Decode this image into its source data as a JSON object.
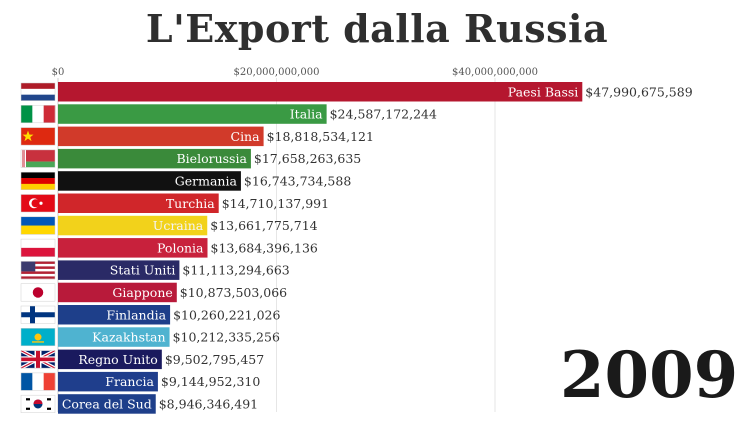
{
  "title": "L'Export dalla Russia",
  "year": "2009",
  "chart_data": {
    "type": "bar",
    "orientation": "horizontal",
    "title": "L'Export dalla Russia",
    "xlim": [
      0,
      50000000000
    ],
    "x_ticks": [
      0,
      20000000000,
      40000000000
    ],
    "x_tick_labels": [
      "$0",
      "$20,000,000,000",
      "$40,000,000,000"
    ],
    "grid": true,
    "categories": [
      "Paesi Bassi",
      "Italia",
      "Cina",
      "Bielorussia",
      "Germania",
      "Turchia",
      "Ucraina",
      "Polonia",
      "Stati Uniti",
      "Giappone",
      "Finlandia",
      "Kazakhstan",
      "Regno Unito",
      "Francia",
      "Corea del Sud"
    ],
    "values": [
      47990675589,
      24587172244,
      18818534121,
      17658263635,
      16743734588,
      14710137991,
      13661775714,
      13684396136,
      11113294663,
      10873503066,
      10260221026,
      10212335256,
      9502795457,
      9144952310,
      8946346491
    ],
    "value_labels": [
      "$47,990,675,589",
      "$24,587,172,244",
      "$18,818,534,121",
      "$17,658,263,635",
      "$16,743,734,588",
      "$14,710,137,991",
      "$13,661,775,714",
      "$13,684,396,136",
      "$11,113,294,663",
      "$10,873,503,066",
      "$10,260,221,026",
      "$10,212,335,256",
      "$9,502,795,457",
      "$9,144,952,310",
      "$8,946,346,491"
    ],
    "colors": [
      "#b5172f",
      "#3a9a44",
      "#d13a2a",
      "#3a8a3a",
      "#111111",
      "#d0262a",
      "#f2d21b",
      "#c8213c",
      "#2a2a66",
      "#b81a3a",
      "#1e3f8a",
      "#4fb3d0",
      "#1a1a5e",
      "#1f3e8c",
      "#1e3f8a"
    ],
    "flags": [
      "netherlands",
      "italy",
      "china",
      "belarus",
      "germany",
      "turkey",
      "ukraine",
      "poland",
      "usa",
      "japan",
      "finland",
      "kazakhstan",
      "uk",
      "france",
      "south-korea"
    ]
  }
}
